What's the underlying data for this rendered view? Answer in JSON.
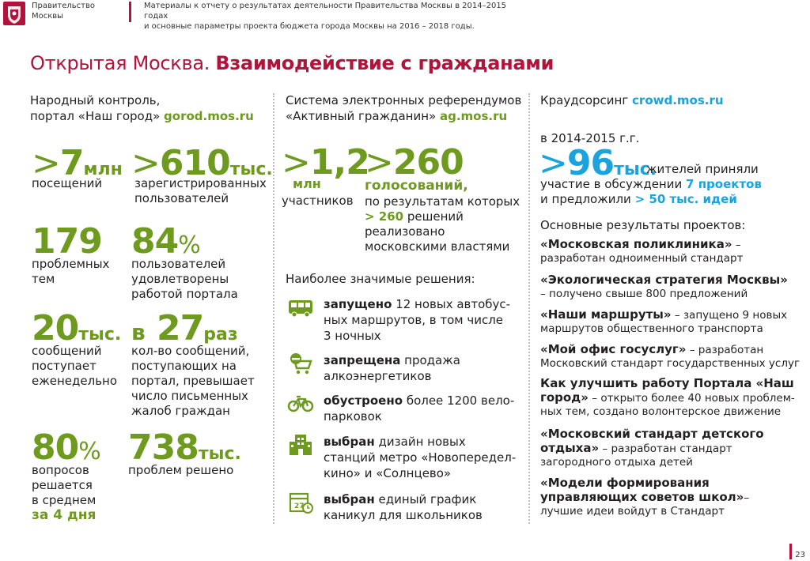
{
  "header": {
    "org_line1": "Правительство",
    "org_line2": "Москвы",
    "doc_line1": "Материалы к отчету о результатах деятельности Правительства Москвы в 2014–2015 годах",
    "doc_line2": "и основные параметры проекта бюджета города Москвы на 2016 – 2018 годы.",
    "logo_icon": "moscow-coat-of-arms-icon"
  },
  "title": {
    "part1": "Открытая Москва.",
    "part2": "Взаимодействие с гражданами"
  },
  "col1": {
    "heading_line1": "Народный контроль,",
    "heading_line2_prefix": "портал «Наш город»",
    "heading_link": "gorod.mos.ru",
    "stats": [
      {
        "gt": ">",
        "value": "7",
        "unit": "млн",
        "label": [
          "посещений"
        ]
      },
      {
        "gt": ">",
        "value": "610",
        "unit": "тыс.",
        "label": [
          "зарегистрированных",
          "пользователей"
        ]
      },
      {
        "value": "179",
        "label": [
          "проблемных",
          "тем"
        ]
      },
      {
        "value": "84",
        "pct": "%",
        "label": [
          "пользователей",
          "удовлетворены",
          "работой портала"
        ]
      },
      {
        "value": "20",
        "unit": "тыс.",
        "label": [
          "сообщений",
          "поступает",
          "еженедельно"
        ]
      },
      {
        "prefix": "в",
        "value": "27",
        "unit": "раз",
        "label": [
          "кол-во сообщений,",
          "поступающих на",
          "портал, превышает",
          "число письменных",
          "жалоб граждан"
        ]
      },
      {
        "value": "80",
        "pct": "%",
        "label": [
          "вопросов",
          "решается",
          "в среднем"
        ],
        "emph": "за 4 дня"
      },
      {
        "value": "738",
        "unit": "тыс.",
        "label": [
          "проблем решено"
        ]
      }
    ]
  },
  "col2": {
    "heading_line1": "Система электронных референдумов",
    "heading_line2_prefix": "«Активный гражданин»",
    "heading_link": "ag.mos.ru",
    "stat1": {
      "gt": ">",
      "value": "1,2",
      "unit": "млн",
      "label": "участников"
    },
    "stat2": {
      "gt": ">",
      "value": "260",
      "unit": "голосований,",
      "label1": "по результатам которых",
      "emph": "> 260",
      "label2": "решений",
      "label3": "реализовано",
      "label4": "московскими властями"
    },
    "decisions_heading": "Наиболее значимые решения:",
    "decisions": [
      {
        "icon": "bus-icon",
        "bold": "запущено",
        "rest": "12 новых автобус-",
        "line2": "ных маршрутов, в том числе",
        "line3": "3 ночных"
      },
      {
        "icon": "no-alcohol-cart-icon",
        "bold": "запрещена",
        "rest": "продажа",
        "line2": "алкоэнергетиков",
        "line3": ""
      },
      {
        "icon": "bicycle-icon",
        "bold": "обустроено",
        "rest": "более 1200 вело-",
        "line2": "парковок",
        "line3": ""
      },
      {
        "icon": "metro-station-icon",
        "bold": "выбран",
        "rest": "дизайн новых",
        "line2": "станций метро «Новопередел-",
        "line3": "кино» и «Солнцево»"
      },
      {
        "icon": "calendar-clock-icon",
        "bold": "выбран",
        "rest": "единый график",
        "line2": "каникул для школьников",
        "line3": ""
      }
    ]
  },
  "col3": {
    "heading_prefix": "Краудсорсинг",
    "heading_link": "crowd.mos.ru",
    "period": "в 2014-2015 г.г.",
    "big_gt": ">",
    "big_value": "96",
    "big_unit": "тыс.",
    "line1": "жителей приняли",
    "line2_prefix": "участие в обсуждении",
    "line2_emph": "7 проектов",
    "line3_prefix": "и предложили",
    "line3_emph": "> 50 тыс. идей",
    "results_heading": "Основные результаты проектов:",
    "projects": [
      {
        "title": "«Московская поликлиника»",
        "tail": " –",
        "desc": [
          "разработан одноименный стандарт"
        ]
      },
      {
        "title": "«Экологическая стратегия Москвы»",
        "tail": "",
        "desc": [
          "– получено свыше 800 предложений"
        ]
      },
      {
        "title": "«Наши маршруты»",
        "tail": " – запущено 9 новых",
        "desc": [
          "маршрутов общественного транспорта"
        ]
      },
      {
        "title": "«Мой офис госуслуг»",
        "tail": " – разработан",
        "desc": [
          "Московский стандарт государственных услуг"
        ]
      },
      {
        "title": "Как улучшить работу Портала «Наш",
        "title2": "город»",
        "tail2": " – открыто более 40 новых проблем-",
        "desc": [
          "ных тем, создано волонтерское движение"
        ]
      },
      {
        "title": "«Московский стандарт детского",
        "title2": "отдыха»",
        "tail2": " – разработан стандарт",
        "desc": [
          "загородного отдыха детей"
        ]
      },
      {
        "title": "«Модели формирования",
        "title2": "управляющих советов школ»",
        "tail2": "–",
        "desc": [
          "лучшие идеи войдут в Стандарт"
        ]
      }
    ]
  },
  "page_number": "23",
  "colors": {
    "accent": "#b3133b",
    "green": "#6d9a1f",
    "blue": "#1aa3dc"
  }
}
